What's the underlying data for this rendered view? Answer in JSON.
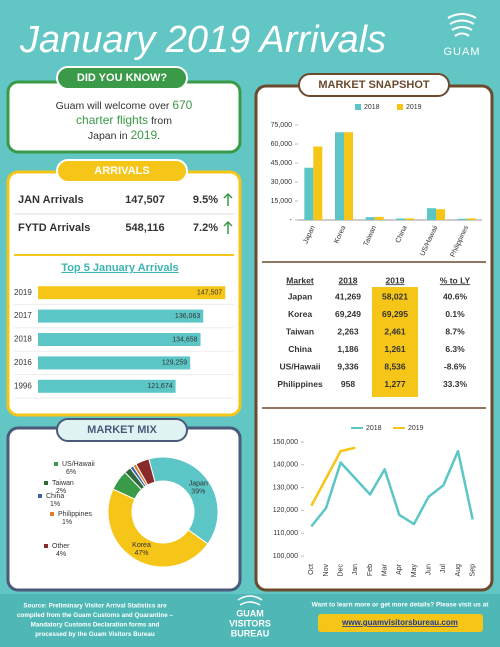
{
  "header": {
    "title": "January 2019 Arrivals",
    "logo": "GUAM"
  },
  "did_you_know": {
    "title": "DID YOU KNOW?",
    "lines": [
      [
        "Guam will welcome over ",
        "670"
      ],
      [
        "charter flights",
        " from"
      ],
      [
        "Japan in ",
        "2019",
        "."
      ]
    ]
  },
  "arrivals": {
    "title": "ARRIVALS",
    "rows": [
      [
        "JAN Arrivals",
        "147,507",
        "9.5%"
      ],
      [
        "FYTD Arrivals",
        "548,116",
        "7.2%"
      ]
    ]
  },
  "market_snapshot": {
    "title": "MARKET SNAPSHOT",
    "table": {
      "columns": [
        "Market",
        "2018",
        "2019",
        "% to LY"
      ],
      "rows": [
        [
          "Japan",
          "41,269",
          "58,021",
          "40.6%"
        ],
        [
          "Korea",
          "69,249",
          "69,295",
          "0.1%"
        ],
        [
          "Taiwan",
          "2,263",
          "2,461",
          "8.7%"
        ],
        [
          "China",
          "1,186",
          "1,261",
          "6.3%"
        ],
        [
          "US/Hawaii",
          "9,336",
          "8,536",
          "-8.6%"
        ],
        [
          "Philippines",
          "958",
          "1,277",
          "33.3%"
        ]
      ]
    }
  },
  "footer": {
    "source": [
      "Source: Preliminary Visitor Arrival Statistics are",
      "compiled from the Guam Customs and Quarantine –",
      "Mandatory Customs  Declaration forms and",
      "processed by the Guam Visitors Bureau"
    ],
    "logo": [
      "GUAM",
      "VISITORS",
      "BUREAU"
    ],
    "cta": [
      "Want to learn more or get more details? Please visit us at"
    ],
    "url": "www.guamvisitorsbureau.com"
  },
  "chart_data": [
    {
      "type": "bar",
      "orientation": "horizontal",
      "title": "Top 5 January Arrivals",
      "categories": [
        "2019",
        "2017",
        "2018",
        "2016",
        "1996"
      ],
      "values": [
        147507,
        136063,
        134658,
        129259,
        121674
      ],
      "value_labels": [
        "147,507",
        "136,063",
        "134,658",
        "129,259",
        "121,674"
      ],
      "colors": [
        "#f5c518",
        "#5cc6c6",
        "#5cc6c6",
        "#5cc6c6",
        "#5cc6c6"
      ],
      "xlim": [
        50000,
        150000
      ]
    },
    {
      "type": "donut",
      "title": "MARKET MIX",
      "categories": [
        "Japan",
        "Korea",
        "US/Hawaii",
        "Taiwan",
        "China",
        "Philippines",
        "Other"
      ],
      "values": [
        39,
        47,
        6,
        2,
        1,
        1,
        4
      ],
      "value_labels": [
        "39%",
        "47%",
        "6%",
        "2%",
        "1%",
        "1%",
        "4%"
      ],
      "colors": [
        "#5cc6c6",
        "#f5c518",
        "#3a9a48",
        "#2f6b3a",
        "#3a64a8",
        "#e07b2a",
        "#8b2a2a"
      ]
    },
    {
      "type": "bar",
      "orientation": "vertical",
      "categories": [
        "Japan",
        "Korea",
        "Taiwan",
        "China",
        "US/Hawaii",
        "Philippines"
      ],
      "series": [
        {
          "name": "2018",
          "color": "#5cc6c6",
          "values": [
            41269,
            69249,
            2263,
            1186,
            9336,
            958
          ]
        },
        {
          "name": "2019",
          "color": "#f5c518",
          "values": [
            58021,
            69295,
            2461,
            1261,
            8536,
            1277
          ]
        }
      ],
      "ylim": [
        0,
        75000
      ],
      "yticks": [
        {
          "value": 0,
          "label": "-"
        },
        {
          "value": 15000,
          "label": "15,000"
        },
        {
          "value": 30000,
          "label": "30,000"
        },
        {
          "value": 45000,
          "label": "45,000"
        },
        {
          "value": 60000,
          "label": "60,000"
        },
        {
          "value": 75000,
          "label": "75,000"
        }
      ]
    },
    {
      "type": "line",
      "categories": [
        "Oct",
        "Nov",
        "Dec",
        "Jan",
        "Feb",
        "Mar",
        "Apr",
        "May",
        "Jun",
        "Jul",
        "Aug",
        "Sep"
      ],
      "series": [
        {
          "name": "2018",
          "color": "#5cc6c6",
          "values": [
            113000,
            121000,
            141000,
            134000,
            127000,
            138000,
            118000,
            114000,
            126000,
            131000,
            146000,
            116000
          ]
        },
        {
          "name": "2019",
          "color": "#f5c518",
          "values": [
            122000,
            134000,
            146000,
            147507,
            null,
            null,
            null,
            null,
            null,
            null,
            null,
            null
          ]
        }
      ],
      "ylim": [
        100000,
        150000
      ],
      "yticks": [
        {
          "value": 100000,
          "label": "100,000"
        },
        {
          "value": 110000,
          "label": "110,000"
        },
        {
          "value": 120000,
          "label": "120,000"
        },
        {
          "value": 130000,
          "label": "130,000"
        },
        {
          "value": 140000,
          "label": "140,000"
        },
        {
          "value": 150000,
          "label": "150,000"
        }
      ]
    }
  ]
}
